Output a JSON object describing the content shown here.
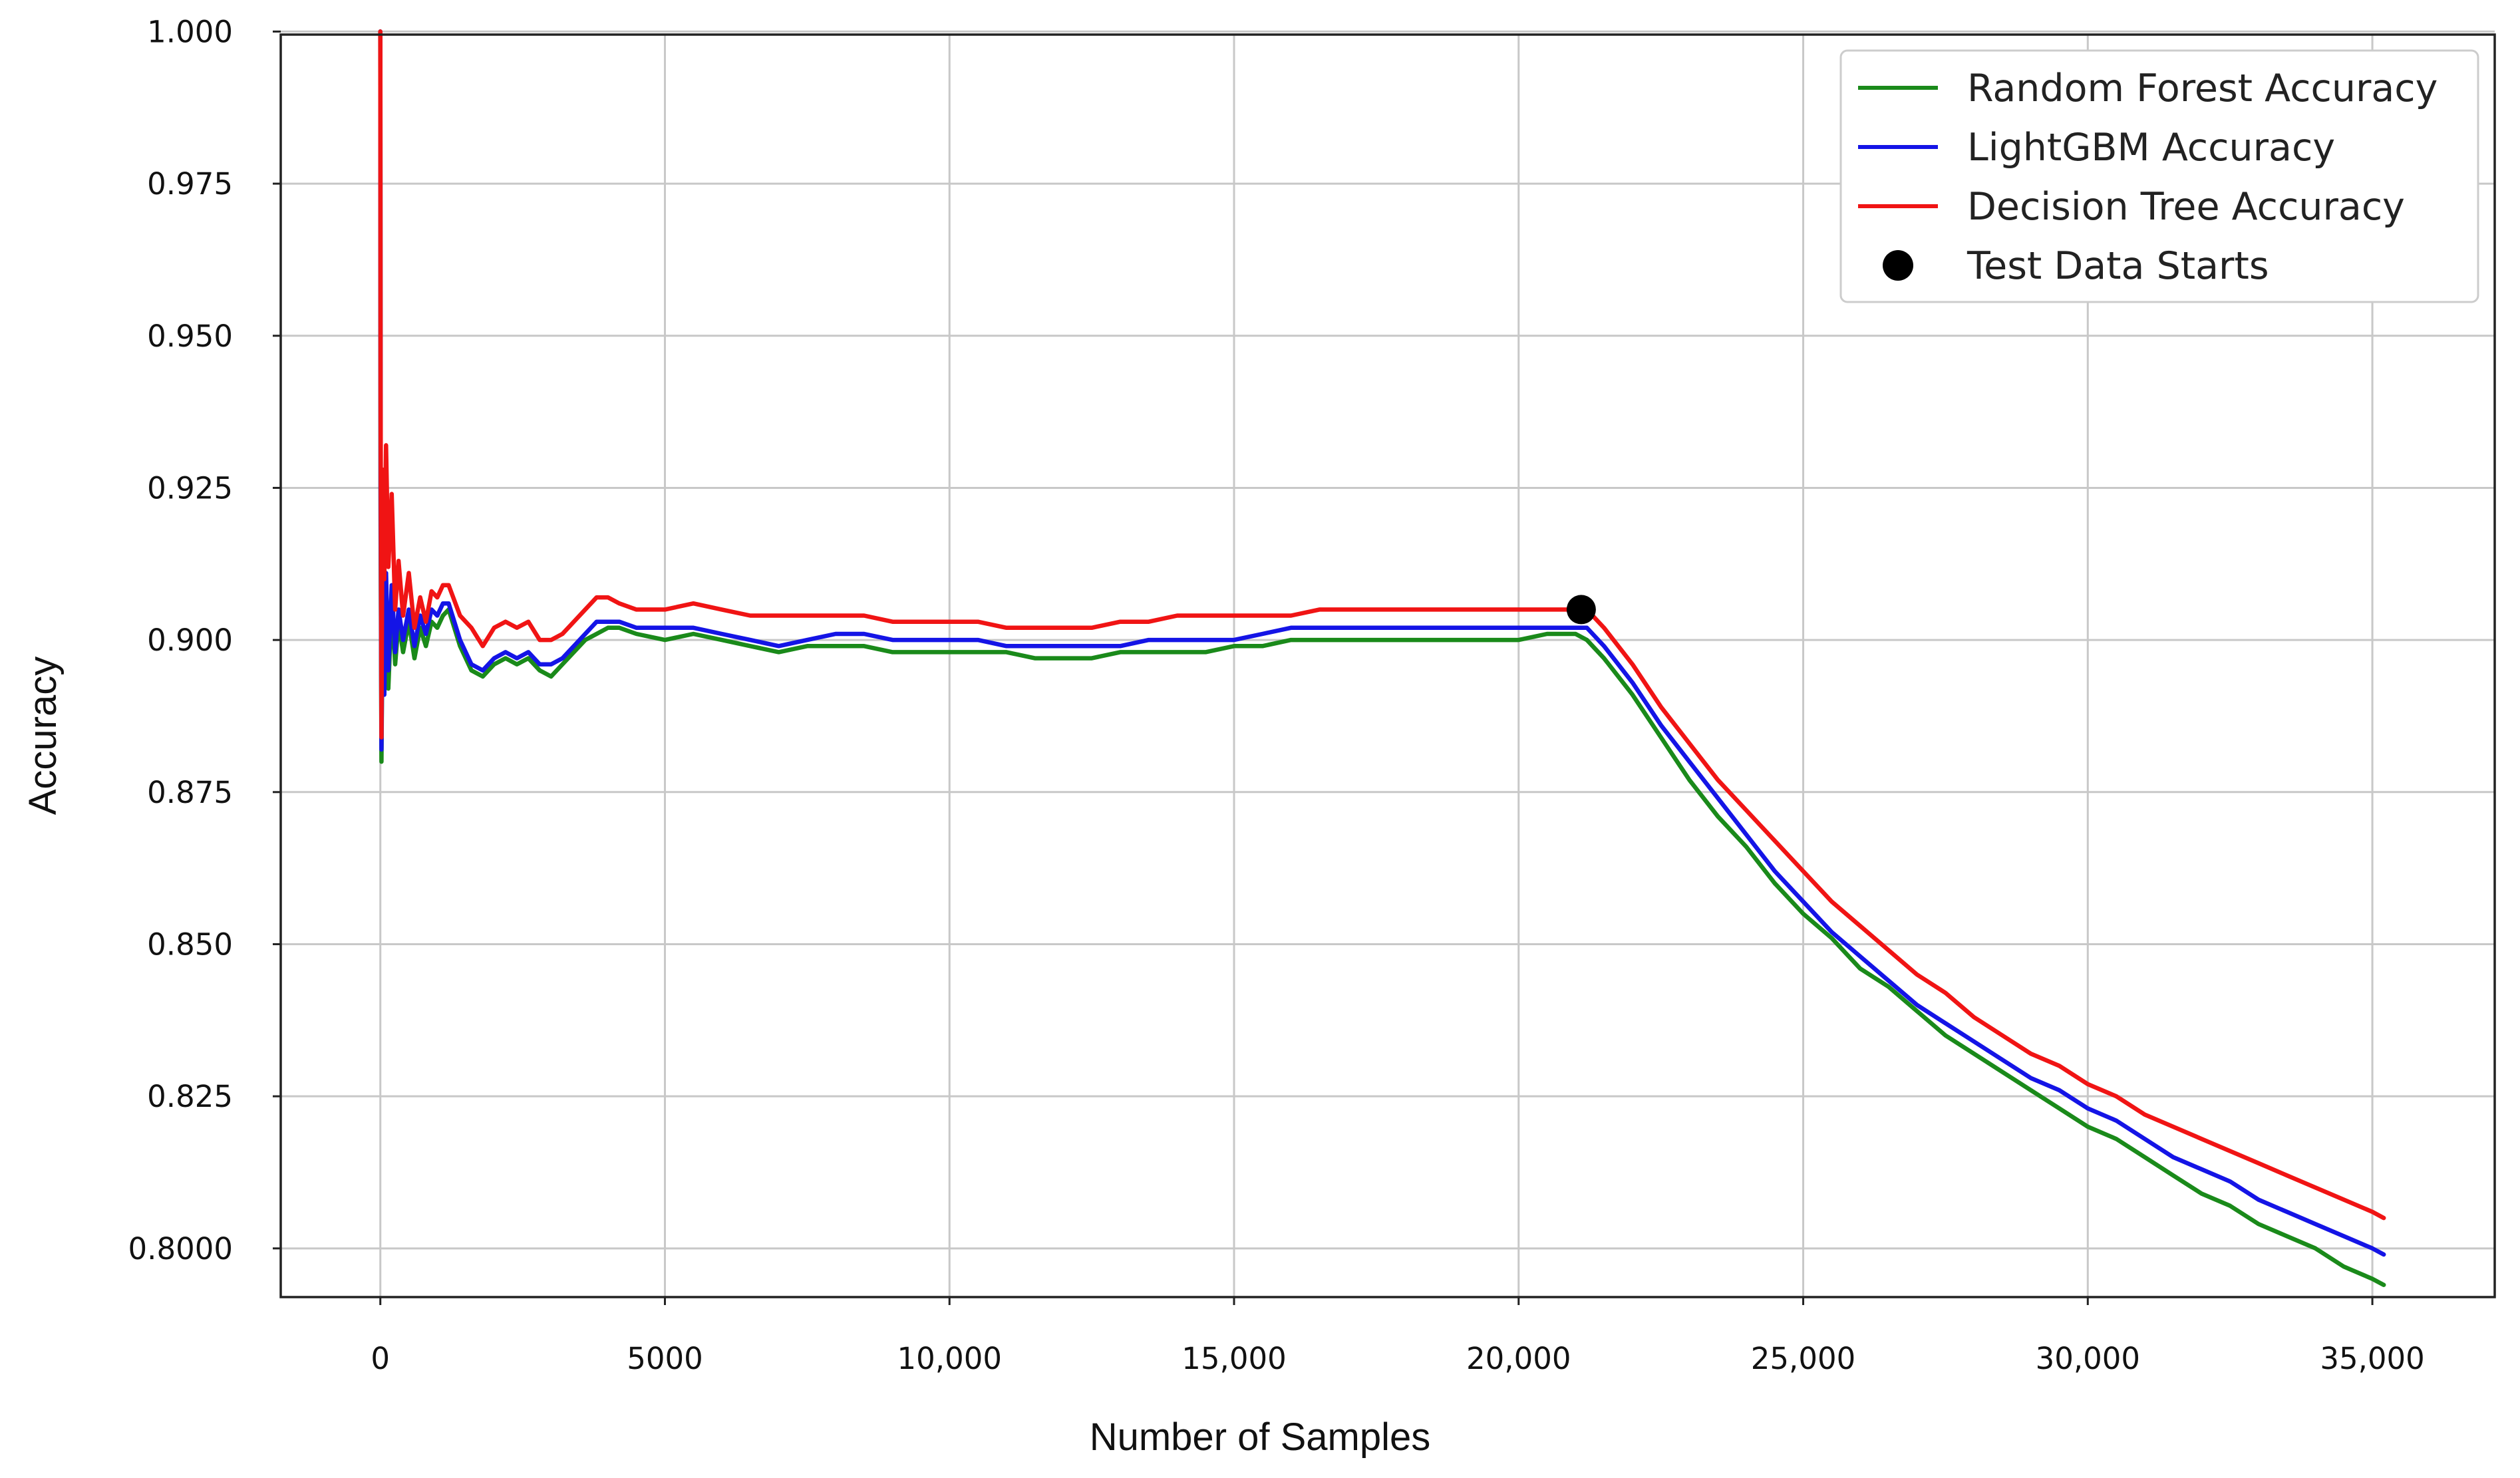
{
  "chart_data": {
    "type": "line",
    "title": "",
    "xlabel": "Number of Samples",
    "ylabel": "Accuracy",
    "xlim": [
      -1750,
      37150
    ],
    "ylim": [
      0.792,
      0.9995
    ],
    "grid": true,
    "legend_position": "top-right",
    "x_ticks": [
      {
        "value": 0,
        "label": "0"
      },
      {
        "value": 5000,
        "label": "5000"
      },
      {
        "value": 10000,
        "label": "10,000"
      },
      {
        "value": 15000,
        "label": "15,000"
      },
      {
        "value": 20000,
        "label": "20,000"
      },
      {
        "value": 25000,
        "label": "25,000"
      },
      {
        "value": 30000,
        "label": "30,000"
      },
      {
        "value": 35000,
        "label": "35,000"
      }
    ],
    "y_ticks": [
      {
        "value": 0.8,
        "label": "0.8000"
      },
      {
        "value": 0.825,
        "label": "0.825"
      },
      {
        "value": 0.85,
        "label": "0.850"
      },
      {
        "value": 0.875,
        "label": "0.875"
      },
      {
        "value": 0.9,
        "label": "0.900"
      },
      {
        "value": 0.925,
        "label": "0.925"
      },
      {
        "value": 0.95,
        "label": "0.950"
      },
      {
        "value": 0.975,
        "label": "0.975"
      },
      {
        "value": 1.0,
        "label": "1.000"
      }
    ],
    "series": [
      {
        "name": "Random Forest Accuracy",
        "color": "#1a8a1a",
        "x": [
          0,
          5,
          20,
          40,
          70,
          100,
          140,
          200,
          260,
          320,
          400,
          500,
          600,
          700,
          800,
          900,
          1000,
          1100,
          1200,
          1400,
          1600,
          1800,
          2000,
          2200,
          2400,
          2600,
          2800,
          3000,
          3200,
          3400,
          3600,
          3800,
          4000,
          4200,
          4500,
          5000,
          5500,
          6000,
          6500,
          7000,
          7500,
          8000,
          8500,
          9000,
          9500,
          10000,
          10500,
          11000,
          11500,
          12000,
          12500,
          13000,
          13500,
          14000,
          14500,
          15000,
          15500,
          16000,
          16500,
          17000,
          17500,
          18000,
          18500,
          19000,
          19500,
          20000,
          20500,
          21000,
          21200,
          21500,
          22000,
          22500,
          23000,
          23500,
          24000,
          24500,
          25000,
          25500,
          26000,
          26500,
          27000,
          27500,
          28000,
          28500,
          29000,
          29500,
          30000,
          30500,
          31000,
          31500,
          32000,
          32500,
          33000,
          33500,
          34000,
          34500,
          35000,
          35200
        ],
        "values": [
          1.0,
          0.92,
          0.88,
          0.905,
          0.893,
          0.905,
          0.892,
          0.906,
          0.896,
          0.903,
          0.898,
          0.903,
          0.897,
          0.902,
          0.899,
          0.903,
          0.902,
          0.904,
          0.905,
          0.899,
          0.895,
          0.894,
          0.896,
          0.897,
          0.896,
          0.897,
          0.895,
          0.894,
          0.896,
          0.898,
          0.9,
          0.901,
          0.902,
          0.902,
          0.901,
          0.9,
          0.901,
          0.9,
          0.899,
          0.898,
          0.899,
          0.899,
          0.899,
          0.898,
          0.898,
          0.898,
          0.898,
          0.898,
          0.897,
          0.897,
          0.897,
          0.898,
          0.898,
          0.898,
          0.898,
          0.899,
          0.899,
          0.9,
          0.9,
          0.9,
          0.9,
          0.9,
          0.9,
          0.9,
          0.9,
          0.9,
          0.901,
          0.901,
          0.9,
          0.897,
          0.891,
          0.884,
          0.877,
          0.871,
          0.866,
          0.86,
          0.855,
          0.851,
          0.846,
          0.843,
          0.839,
          0.835,
          0.832,
          0.829,
          0.826,
          0.823,
          0.82,
          0.818,
          0.815,
          0.812,
          0.809,
          0.807,
          0.804,
          0.802,
          0.8,
          0.797,
          0.795,
          0.794
        ]
      },
      {
        "name": "LightGBM Accuracy",
        "color": "#1414e6",
        "x": [
          0,
          5,
          20,
          40,
          70,
          100,
          140,
          200,
          260,
          320,
          400,
          500,
          600,
          700,
          800,
          900,
          1000,
          1100,
          1200,
          1400,
          1600,
          1800,
          2000,
          2200,
          2400,
          2600,
          2800,
          3000,
          3200,
          3400,
          3600,
          3800,
          4000,
          4200,
          4500,
          5000,
          5500,
          6000,
          6500,
          7000,
          7500,
          8000,
          8500,
          9000,
          9500,
          10000,
          10500,
          11000,
          11500,
          12000,
          12500,
          13000,
          13500,
          14000,
          14500,
          15000,
          15500,
          16000,
          16500,
          17000,
          17500,
          18000,
          18500,
          19000,
          19500,
          20000,
          20500,
          21000,
          21200,
          21500,
          22000,
          22500,
          23000,
          23500,
          24000,
          24500,
          25000,
          25500,
          26000,
          26500,
          27000,
          27500,
          28000,
          28500,
          29000,
          29500,
          30000,
          30500,
          31000,
          31500,
          32000,
          32500,
          33000,
          33500,
          34000,
          34500,
          35000,
          35200
        ],
        "values": [
          1.0,
          0.925,
          0.882,
          0.907,
          0.891,
          0.911,
          0.895,
          0.909,
          0.898,
          0.905,
          0.9,
          0.905,
          0.899,
          0.904,
          0.901,
          0.905,
          0.904,
          0.906,
          0.906,
          0.9,
          0.896,
          0.895,
          0.897,
          0.898,
          0.897,
          0.898,
          0.896,
          0.896,
          0.897,
          0.899,
          0.901,
          0.903,
          0.903,
          0.903,
          0.902,
          0.902,
          0.902,
          0.901,
          0.9,
          0.899,
          0.9,
          0.901,
          0.901,
          0.9,
          0.9,
          0.9,
          0.9,
          0.899,
          0.899,
          0.899,
          0.899,
          0.899,
          0.9,
          0.9,
          0.9,
          0.9,
          0.901,
          0.902,
          0.902,
          0.902,
          0.902,
          0.902,
          0.902,
          0.902,
          0.902,
          0.902,
          0.902,
          0.902,
          0.902,
          0.899,
          0.893,
          0.886,
          0.88,
          0.874,
          0.868,
          0.862,
          0.857,
          0.852,
          0.848,
          0.844,
          0.84,
          0.837,
          0.834,
          0.831,
          0.828,
          0.826,
          0.823,
          0.821,
          0.818,
          0.815,
          0.813,
          0.811,
          0.808,
          0.806,
          0.804,
          0.802,
          0.8,
          0.799
        ]
      },
      {
        "name": "Decision Tree Accuracy",
        "color": "#f01414",
        "x": [
          0,
          5,
          20,
          40,
          70,
          100,
          140,
          200,
          260,
          320,
          400,
          500,
          600,
          700,
          800,
          900,
          1000,
          1100,
          1200,
          1400,
          1600,
          1800,
          2000,
          2200,
          2400,
          2600,
          2800,
          3000,
          3200,
          3400,
          3600,
          3800,
          4000,
          4200,
          4500,
          5000,
          5500,
          6000,
          6500,
          7000,
          7500,
          8000,
          8500,
          9000,
          9500,
          10000,
          10500,
          11000,
          11500,
          12000,
          12500,
          13000,
          13500,
          14000,
          14500,
          15000,
          15500,
          16000,
          16500,
          17000,
          17500,
          18000,
          18500,
          19000,
          19500,
          20000,
          20500,
          21000,
          21200,
          21500,
          22000,
          22500,
          23000,
          23500,
          24000,
          24500,
          25000,
          25500,
          26000,
          26500,
          27000,
          27500,
          28000,
          28500,
          29000,
          29500,
          30000,
          30500,
          31000,
          31500,
          32000,
          32500,
          33000,
          33500,
          34000,
          34500,
          35000,
          35200
        ],
        "values": [
          1.0,
          0.94,
          0.884,
          0.928,
          0.91,
          0.932,
          0.912,
          0.924,
          0.905,
          0.913,
          0.904,
          0.911,
          0.902,
          0.907,
          0.903,
          0.908,
          0.907,
          0.909,
          0.909,
          0.904,
          0.902,
          0.899,
          0.902,
          0.903,
          0.902,
          0.903,
          0.9,
          0.9,
          0.901,
          0.903,
          0.905,
          0.907,
          0.907,
          0.906,
          0.905,
          0.905,
          0.906,
          0.905,
          0.904,
          0.904,
          0.904,
          0.904,
          0.904,
          0.903,
          0.903,
          0.903,
          0.903,
          0.902,
          0.902,
          0.902,
          0.902,
          0.903,
          0.903,
          0.904,
          0.904,
          0.904,
          0.904,
          0.904,
          0.905,
          0.905,
          0.905,
          0.905,
          0.905,
          0.905,
          0.905,
          0.905,
          0.905,
          0.905,
          0.905,
          0.902,
          0.896,
          0.889,
          0.883,
          0.877,
          0.872,
          0.867,
          0.862,
          0.857,
          0.853,
          0.849,
          0.845,
          0.842,
          0.838,
          0.835,
          0.832,
          0.83,
          0.827,
          0.825,
          0.822,
          0.82,
          0.818,
          0.816,
          0.814,
          0.812,
          0.81,
          0.808,
          0.806,
          0.805
        ]
      }
    ],
    "markers": [
      {
        "name": "Test Data Starts",
        "x": 21100,
        "y": 0.905,
        "color": "#000000"
      }
    ],
    "legend": [
      {
        "label": "Random Forest Accuracy",
        "kind": "line",
        "color": "#1a8a1a"
      },
      {
        "label": "LightGBM Accuracy",
        "kind": "line",
        "color": "#1414e6"
      },
      {
        "label": "Decision Tree Accuracy",
        "kind": "line",
        "color": "#f01414"
      },
      {
        "label": "Test Data Starts",
        "kind": "marker",
        "color": "#000000"
      }
    ]
  }
}
